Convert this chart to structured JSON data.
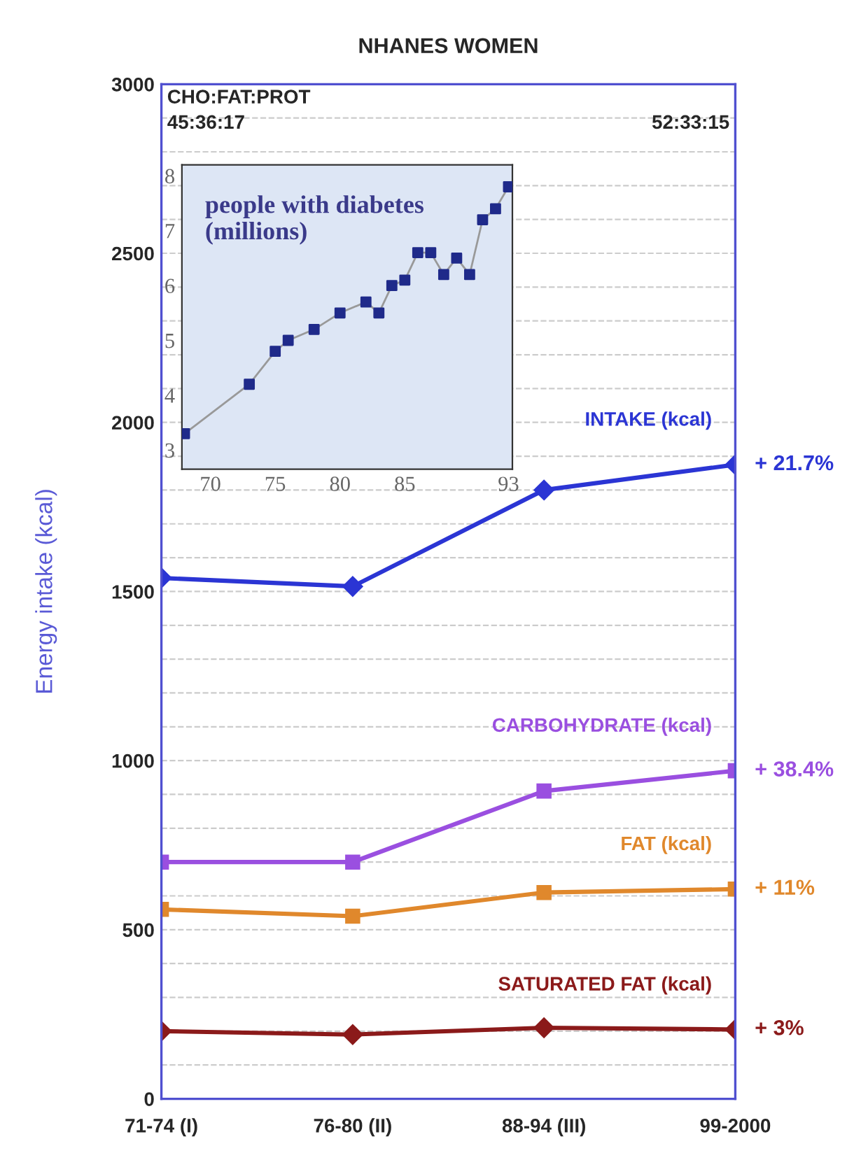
{
  "chart_data": [
    {
      "type": "line",
      "title": "NHANES WOMEN",
      "ylabel": "Energy intake (kcal)",
      "categories": [
        "71-74 (I)",
        "76-80 (II)",
        "88-94 (III)",
        "99-2000"
      ],
      "series": [
        {
          "name": "INTAKE (kcal)",
          "color": "#2b35d4",
          "marker": "diamond",
          "values": [
            1540,
            1515,
            1800,
            1875
          ]
        },
        {
          "name": "CARBOHYDRATE (kcal)",
          "color": "#9a4fe0",
          "marker": "square",
          "values": [
            700,
            700,
            910,
            970
          ]
        },
        {
          "name": "FAT (kcal)",
          "color": "#e0882c",
          "marker": "square",
          "values": [
            560,
            540,
            610,
            620
          ]
        },
        {
          "name": "SATURATED FAT (kcal)",
          "color": "#8b1a1a",
          "marker": "diamond",
          "values": [
            200,
            190,
            210,
            205
          ]
        }
      ],
      "ylim": [
        0,
        3000
      ],
      "yticks": [
        0,
        {
          "value": 100,
          "label": null
        },
        {
          "value": 200,
          "label": null
        },
        {
          "value": 300,
          "label": null
        },
        {
          "value": 400,
          "label": null
        },
        500,
        {
          "value": 600,
          "label": null
        },
        {
          "value": 700,
          "label": null
        },
        {
          "value": 800,
          "label": null
        },
        {
          "value": 900,
          "label": null
        },
        1000,
        {
          "value": 1100,
          "label": null
        },
        {
          "value": 1200,
          "label": null
        },
        {
          "value": 1300,
          "label": null
        },
        {
          "value": 1400,
          "label": null
        },
        1500,
        {
          "value": 1600,
          "label": null
        },
        {
          "value": 1700,
          "label": null
        },
        {
          "value": 1800,
          "label": null
        },
        {
          "value": 1900,
          "label": null
        },
        2000,
        {
          "value": 2100,
          "label": null
        },
        {
          "value": 2200,
          "label": null
        },
        {
          "value": 2300,
          "label": null
        },
        {
          "value": 2400,
          "label": null
        },
        2500,
        {
          "value": 2600,
          "label": null
        },
        {
          "value": 2700,
          "label": null
        },
        {
          "value": 2800,
          "label": null
        },
        {
          "value": 2900,
          "label": null
        },
        3000
      ],
      "grid": "y",
      "line_style": "solid",
      "annotations": [
        "CHO:FAT:PROT",
        "45:36:17",
        "52:33:15",
        {
          "text": "+ 21.7%",
          "x": "99-2000",
          "y": 1875
        },
        {
          "text": "+ 38.4%",
          "x": "99-2000",
          "y": 970
        },
        {
          "text": "+ 11%",
          "x": "99-2000",
          "y": 620
        },
        {
          "text": "+ 3%",
          "x": "99-2000",
          "y": 205
        }
      ]
    },
    {
      "type": "line",
      "title": "people with diabetes\n(millions)",
      "marker": "square",
      "line_style": "solid",
      "x": [
        68,
        73,
        75,
        76,
        78,
        80,
        82,
        83,
        84,
        85,
        86,
        87,
        88,
        89,
        90,
        91,
        92,
        93
      ],
      "series": [
        {
          "color": "#1f2a8a",
          "values": [
            3.3,
            4.2,
            4.8,
            5.0,
            5.2,
            5.5,
            5.7,
            5.5,
            6.0,
            6.1,
            6.6,
            6.6,
            6.2,
            6.5,
            6.2,
            7.2,
            7.4,
            7.8
          ]
        }
      ],
      "xlim": [
        67.8,
        93.3
      ],
      "xticks": [
        70,
        75,
        80,
        85,
        93
      ],
      "ylim": [
        2.65,
        8.2
      ],
      "yticks": [
        3,
        4,
        5,
        6,
        7,
        8
      ],
      "grid": false
    }
  ]
}
